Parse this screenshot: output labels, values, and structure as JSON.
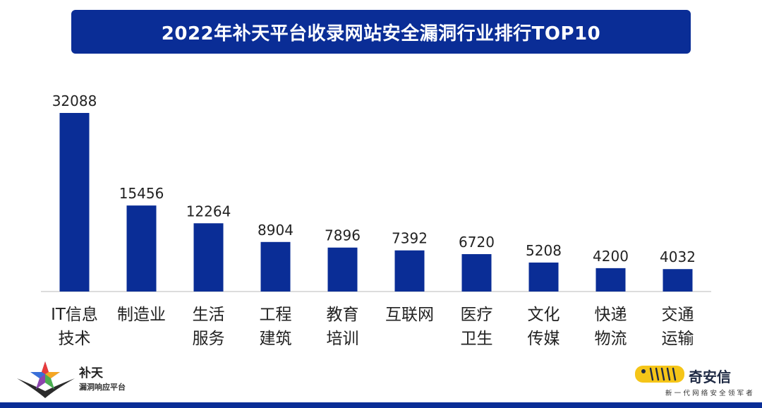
{
  "chart_data": {
    "type": "bar",
    "title": "2022年补天平台收录网站安全漏洞行业排行TOP10",
    "categories": [
      "IT信息\n技术",
      "制造业",
      "生活\n服务",
      "工程\n建筑",
      "教育\n培训",
      "互联网",
      "医疗\n卫生",
      "文化\n传媒",
      "快递\n物流",
      "交通\n运输"
    ],
    "values": [
      32088,
      15456,
      12264,
      8904,
      7896,
      7392,
      6720,
      5208,
      4200,
      4032
    ],
    "xlabel": "",
    "ylabel": "",
    "ylim": [
      0,
      32088
    ],
    "grid": false,
    "bar_color": "#0a2d96",
    "data_labels": true
  },
  "logos": {
    "left": {
      "brand": "补天",
      "subtitle": "漏洞响应平台"
    },
    "right": {
      "brand": "奇安信",
      "subtitle": "新一代网络安全领军者"
    }
  },
  "colors": {
    "accent": "#0a2d96",
    "title_text": "#ffffff",
    "axis": "#d0d0d0"
  }
}
